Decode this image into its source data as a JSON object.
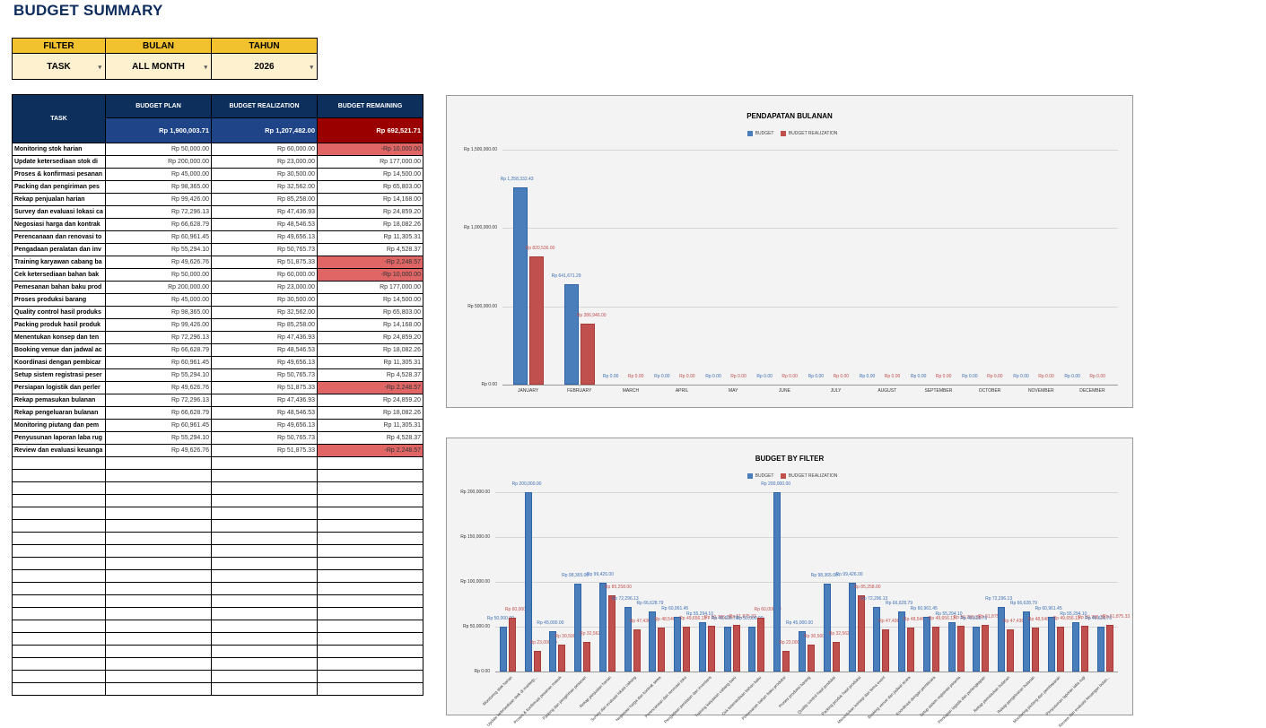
{
  "title": "BUDGET SUMMARY",
  "filters": {
    "headers": [
      "FILTER",
      "BULAN",
      "TAHUN"
    ],
    "values": [
      "TASK",
      "ALL MONTH",
      "2026"
    ]
  },
  "table": {
    "headers": {
      "task": "TASK",
      "plan": "BUDGET PLAN",
      "realization": "BUDGET REALIZATION",
      "remaining": "BUDGET REMAINING"
    },
    "totals": {
      "plan": "Rp 1,900,003.71",
      "realization": "Rp 1,207,482.00",
      "remaining": "Rp 692,521.71"
    },
    "rows": [
      {
        "task": "Monitoring stok harian",
        "plan": "Rp 50,000.00",
        "real": "Rp 60,000.00",
        "rem": "-Rp 10,000.00",
        "neg": true
      },
      {
        "task": "Update ketersediaan stok di",
        "plan": "Rp 200,000.00",
        "real": "Rp 23,000.00",
        "rem": "Rp 177,000.00",
        "neg": false
      },
      {
        "task": "Proses & konfirmasi pesanan",
        "plan": "Rp 45,000.00",
        "real": "Rp 30,500.00",
        "rem": "Rp 14,500.00",
        "neg": false
      },
      {
        "task": "Packing dan pengiriman pes",
        "plan": "Rp 98,365.00",
        "real": "Rp 32,562.00",
        "rem": "Rp 65,803.00",
        "neg": false
      },
      {
        "task": "Rekap penjualan harian",
        "plan": "Rp 99,426.00",
        "real": "Rp 85,258.00",
        "rem": "Rp 14,168.00",
        "neg": false
      },
      {
        "task": "Survey dan evaluasi lokasi ca",
        "plan": "Rp 72,296.13",
        "real": "Rp 47,436.93",
        "rem": "Rp 24,859.20",
        "neg": false
      },
      {
        "task": "Negosiasi harga dan kontrak",
        "plan": "Rp 66,628.79",
        "real": "Rp 48,546.53",
        "rem": "Rp 18,082.26",
        "neg": false
      },
      {
        "task": "Perencanaan dan renovasi to",
        "plan": "Rp 60,961.45",
        "real": "Rp 49,656.13",
        "rem": "Rp 11,305.31",
        "neg": false
      },
      {
        "task": "Pengadaan peralatan dan inv",
        "plan": "Rp 55,294.10",
        "real": "Rp 50,765.73",
        "rem": "Rp 4,528.37",
        "neg": false
      },
      {
        "task": "Training karyawan cabang ba",
        "plan": "Rp 49,626.76",
        "real": "Rp 51,875.33",
        "rem": "-Rp 2,248.57",
        "neg": true
      },
      {
        "task": "Cek ketersediaan bahan bak",
        "plan": "Rp 50,000.00",
        "real": "Rp 60,000.00",
        "rem": "-Rp 10,000.00",
        "neg": true
      },
      {
        "task": "Pemesanan bahan baku prod",
        "plan": "Rp 200,000.00",
        "real": "Rp 23,000.00",
        "rem": "Rp 177,000.00",
        "neg": false
      },
      {
        "task": "Proses produksi barang",
        "plan": "Rp 45,000.00",
        "real": "Rp 30,500.00",
        "rem": "Rp 14,500.00",
        "neg": false
      },
      {
        "task": "Quality control hasil produks",
        "plan": "Rp 98,365.00",
        "real": "Rp 32,562.00",
        "rem": "Rp 65,803.00",
        "neg": false
      },
      {
        "task": "Packing produk hasil produk",
        "plan": "Rp 99,426.00",
        "real": "Rp 85,258.00",
        "rem": "Rp 14,168.00",
        "neg": false
      },
      {
        "task": "Menentukan konsep dan ten",
        "plan": "Rp 72,296.13",
        "real": "Rp 47,436.93",
        "rem": "Rp 24,859.20",
        "neg": false
      },
      {
        "task": "Booking venue dan jadwal ac",
        "plan": "Rp 66,628.79",
        "real": "Rp 48,546.53",
        "rem": "Rp 18,082.26",
        "neg": false
      },
      {
        "task": "Koordinasi dengan pembicar",
        "plan": "Rp 60,961.45",
        "real": "Rp 49,656.13",
        "rem": "Rp 11,305.31",
        "neg": false
      },
      {
        "task": "Setup sistem registrasi peser",
        "plan": "Rp 55,294.10",
        "real": "Rp 50,765.73",
        "rem": "Rp 4,528.37",
        "neg": false
      },
      {
        "task": "Persiapan logistik dan perler",
        "plan": "Rp 49,626.76",
        "real": "Rp 51,875.33",
        "rem": "-Rp 2,248.57",
        "neg": true
      },
      {
        "task": "Rekap pemasukan bulanan",
        "plan": "Rp 72,296.13",
        "real": "Rp 47,436.93",
        "rem": "Rp 24,859.20",
        "neg": false
      },
      {
        "task": "Rekap pengeluaran bulanan",
        "plan": "Rp 66,628.79",
        "real": "Rp 48,546.53",
        "rem": "Rp 18,082.26",
        "neg": false
      },
      {
        "task": "Monitoring piutang dan pem",
        "plan": "Rp 60,961.45",
        "real": "Rp 49,656.13",
        "rem": "Rp 11,305.31",
        "neg": false
      },
      {
        "task": "Penyusunan laporan laba rug",
        "plan": "Rp 55,294.10",
        "real": "Rp 50,765.73",
        "rem": "Rp 4,528.37",
        "neg": false
      },
      {
        "task": "Review dan evaluasi keuanga",
        "plan": "Rp 49,626.76",
        "real": "Rp 51,875.33",
        "rem": "-Rp 2,248.57",
        "neg": true
      }
    ],
    "empty_rows": 19
  },
  "colors": {
    "title": "#0d2c5c",
    "filter_header": "#f2c12e",
    "filter_value": "#fdf1cf",
    "table_header": "#0d2f5c",
    "total_blue": "#1f4488",
    "total_red": "#9b0000",
    "negative_cell": "#e06666",
    "budget_bar": "#4a7ebb",
    "realization_bar": "#c0504d"
  },
  "chart_data": [
    {
      "type": "bar",
      "title": "PENDAPATAN BULANAN",
      "legend": [
        "BUDGET",
        "BUDGET REALIZATION"
      ],
      "yticks": [
        "Rp 0.00",
        "Rp 500,000.00",
        "Rp 1,000,000.00",
        "Rp 1,500,000.00"
      ],
      "ylim": [
        0,
        1500000
      ],
      "categories": [
        "JANUARY",
        "FEBRUARY",
        "MARCH",
        "APRIL",
        "MAY",
        "JUNE",
        "JULY",
        "AUGUST",
        "SEPTEMBER",
        "OCTOBER",
        "NOVEMBER",
        "DECEMBER"
      ],
      "series": [
        {
          "name": "BUDGET",
          "values": [
            1258332.43,
            641671.29,
            0,
            0,
            0,
            0,
            0,
            0,
            0,
            0,
            0,
            0
          ],
          "labels": [
            "Rp 1,258,332.43",
            "Rp 641,671.29",
            "Rp 0.00",
            "Rp 0.00",
            "Rp 0.00",
            "Rp 0.00",
            "Rp 0.00",
            "Rp 0.00",
            "Rp 0.00",
            "Rp 0.00",
            "Rp 0.00",
            "Rp 0.00"
          ]
        },
        {
          "name": "BUDGET REALIZATION",
          "values": [
            820536.0,
            386946.0,
            0,
            0,
            0,
            0,
            0,
            0,
            0,
            0,
            0,
            0
          ],
          "labels": [
            "Rp 820,536.00",
            "Rp 386,946.00",
            "Rp 0.00",
            "Rp 0.00",
            "Rp 0.00",
            "Rp 0.00",
            "Rp 0.00",
            "Rp 0.00",
            "Rp 0.00",
            "Rp 0.00",
            "Rp 0.00",
            "Rp 0.00"
          ]
        }
      ]
    },
    {
      "type": "bar",
      "title": "BUDGET BY FILTER",
      "legend": [
        "BUDGET",
        "BUDGET REALIZATION"
      ],
      "yticks": [
        "Rp 0.00",
        "Rp 50,000.00",
        "Rp 100,000.00",
        "Rp 150,000.00",
        "Rp 200,000.00"
      ],
      "ylim": [
        0,
        200000
      ],
      "categories": [
        "Monitoring stok harian",
        "Update ketersediaan stok di marketp...",
        "Proses & konfirmasi pesanan masuk",
        "Packing dan pengiriman pesanan",
        "Rekap penjualan harian",
        "Survey dan evaluasi lokasi cabang",
        "Negosiasi harga dan kontrak sewa",
        "Perencanaan dan renovasi toko",
        "Pengadaan peralatan dan inventaris",
        "Training karyawan cabang baru",
        "Cek ketersediaan bahan baku",
        "Pemesanan bahan baku produksi",
        "Proses produksi barang",
        "Quality control hasil produksi",
        "Packing produk hasil produksi",
        "Menentukan konsep dan tema event",
        "Booking venue dan jadwal acara",
        "Koordinasi dengan pembicara",
        "Setup sistem registrasi peserta",
        "Persiapan logistik dan perlengkapan",
        "Rekap pemasukan bulanan",
        "Rekap pengeluaran bulanan",
        "Monitoring piutang dan pembayaran",
        "Penyusunan laporan laba rugi",
        "Review dan evaluasi keuangan bulan..."
      ],
      "series": [
        {
          "name": "BUDGET",
          "values": [
            50000,
            200000,
            45000,
            98365,
            99426,
            72296.13,
            66628.79,
            60961.45,
            55294.1,
            49626.76,
            50000,
            200000,
            45000,
            98365,
            99426,
            72296.13,
            66628.79,
            60961.45,
            55294.1,
            49626.76,
            72296.13,
            66628.79,
            60961.45,
            55294.1,
            49626.76
          ]
        },
        {
          "name": "BUDGET REALIZATION",
          "values": [
            60000,
            23000,
            30500,
            32562,
            85258,
            47436.93,
            48546.53,
            49656.13,
            50765.73,
            51875.33,
            60000,
            23000,
            30500,
            32562,
            85258,
            47436.93,
            48546.53,
            49656.13,
            50765.73,
            51875.33,
            47436.93,
            48546.53,
            49656.13,
            50765.73,
            51875.33
          ]
        }
      ]
    }
  ]
}
